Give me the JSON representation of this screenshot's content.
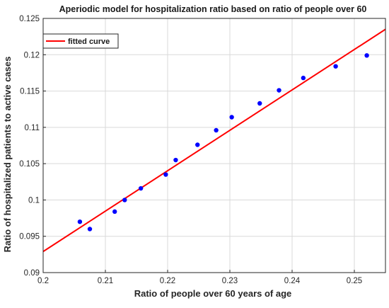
{
  "chart_data": {
    "type": "scatter",
    "title": "Aperiodic model for hospitalization ratio based on ratio of people over 60",
    "xlabel": "Ratio of people over 60 years of age",
    "ylabel": "Ratio of hospitalized patients to active cases",
    "xlim": [
      0.2,
      0.255
    ],
    "ylim": [
      0.09,
      0.125
    ],
    "xticks": [
      "0.2",
      "0.21",
      "0.22",
      "0.23",
      "0.24",
      "0.25"
    ],
    "yticks": [
      "0.09",
      "0.095",
      "0.1",
      "0.105",
      "0.11",
      "0.115",
      "0.12",
      "0.125"
    ],
    "grid": true,
    "legend": {
      "position": "top-left",
      "entries": [
        "fitted curve"
      ]
    },
    "series": [
      {
        "name": "",
        "kind": "scatter",
        "color": "#0000ff",
        "x": [
          0.2059,
          0.2075,
          0.2115,
          0.2131,
          0.2157,
          0.2197,
          0.2213,
          0.2248,
          0.2278,
          0.2303,
          0.2348,
          0.2379,
          0.2418,
          0.247,
          0.252
        ],
        "y": [
          0.097,
          0.096,
          0.0984,
          0.1,
          0.1016,
          0.1035,
          0.1055,
          0.1076,
          0.1096,
          0.1114,
          0.1133,
          0.1151,
          0.1168,
          0.1184,
          0.1199
        ]
      },
      {
        "name": "fitted curve",
        "kind": "line",
        "color": "#ff0000",
        "x": [
          0.2,
          0.255
        ],
        "y": [
          0.0929,
          0.1235
        ]
      }
    ]
  }
}
